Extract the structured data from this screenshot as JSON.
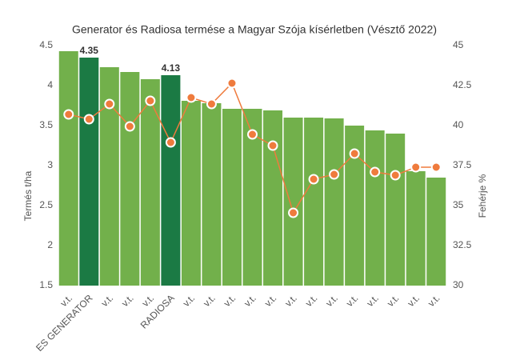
{
  "chart_data": {
    "type": "bar-line",
    "title": "Generator és Radiosa termése a Magyar Szója kísérletben (Vésztő 2022)",
    "y_label": "Termés t/ha",
    "y2_label": "Fehérje %",
    "categories": [
      "v.t.",
      "ES GENERATOR",
      "v.t.",
      "v.t.",
      "v.t.",
      "RADIOSA",
      "v.t.",
      "v.t.",
      "v.t.",
      "v.t.",
      "v.t.",
      "v.t.",
      "v.t.",
      "v.t.",
      "v.t.",
      "v.t.",
      "v.t.",
      "v.t.",
      "v.t."
    ],
    "series": [
      {
        "type": "bar",
        "colors": [
          "#72b04b",
          "#1b7a44",
          "#72b04b",
          "#72b04b",
          "#72b04b",
          "#1b7a44",
          "#72b04b",
          "#72b04b",
          "#72b04b",
          "#72b04b",
          "#72b04b",
          "#72b04b",
          "#72b04b",
          "#72b04b",
          "#72b04b",
          "#72b04b",
          "#72b04b",
          "#72b04b",
          "#72b04b"
        ],
        "values": [
          4.43,
          4.35,
          4.23,
          4.17,
          4.08,
          4.13,
          3.81,
          3.78,
          3.71,
          3.71,
          3.69,
          3.6,
          3.6,
          3.59,
          3.5,
          3.44,
          3.4,
          2.93,
          2.85
        ],
        "value_labels": [
          null,
          "4.35",
          null,
          null,
          null,
          "4.13",
          null,
          null,
          null,
          null,
          null,
          null,
          null,
          null,
          null,
          null,
          null,
          null,
          null
        ]
      },
      {
        "type": "line",
        "axis": "y2",
        "color": "#ef7b3d",
        "values": [
          40.7,
          40.4,
          41.35,
          39.95,
          41.55,
          38.95,
          41.75,
          41.35,
          42.65,
          39.45,
          38.75,
          34.55,
          36.65,
          36.95,
          38.25,
          37.1,
          36.9,
          37.4,
          37.4
        ]
      }
    ],
    "ylim": [
      1.5,
      4.5
    ],
    "yticks": [
      1.5,
      2,
      2.5,
      3,
      3.5,
      4,
      4.5
    ],
    "y2lim": [
      30,
      45
    ],
    "y2ticks": [
      30,
      32.5,
      35,
      37.5,
      40,
      42.5,
      45
    ],
    "grid": false
  }
}
